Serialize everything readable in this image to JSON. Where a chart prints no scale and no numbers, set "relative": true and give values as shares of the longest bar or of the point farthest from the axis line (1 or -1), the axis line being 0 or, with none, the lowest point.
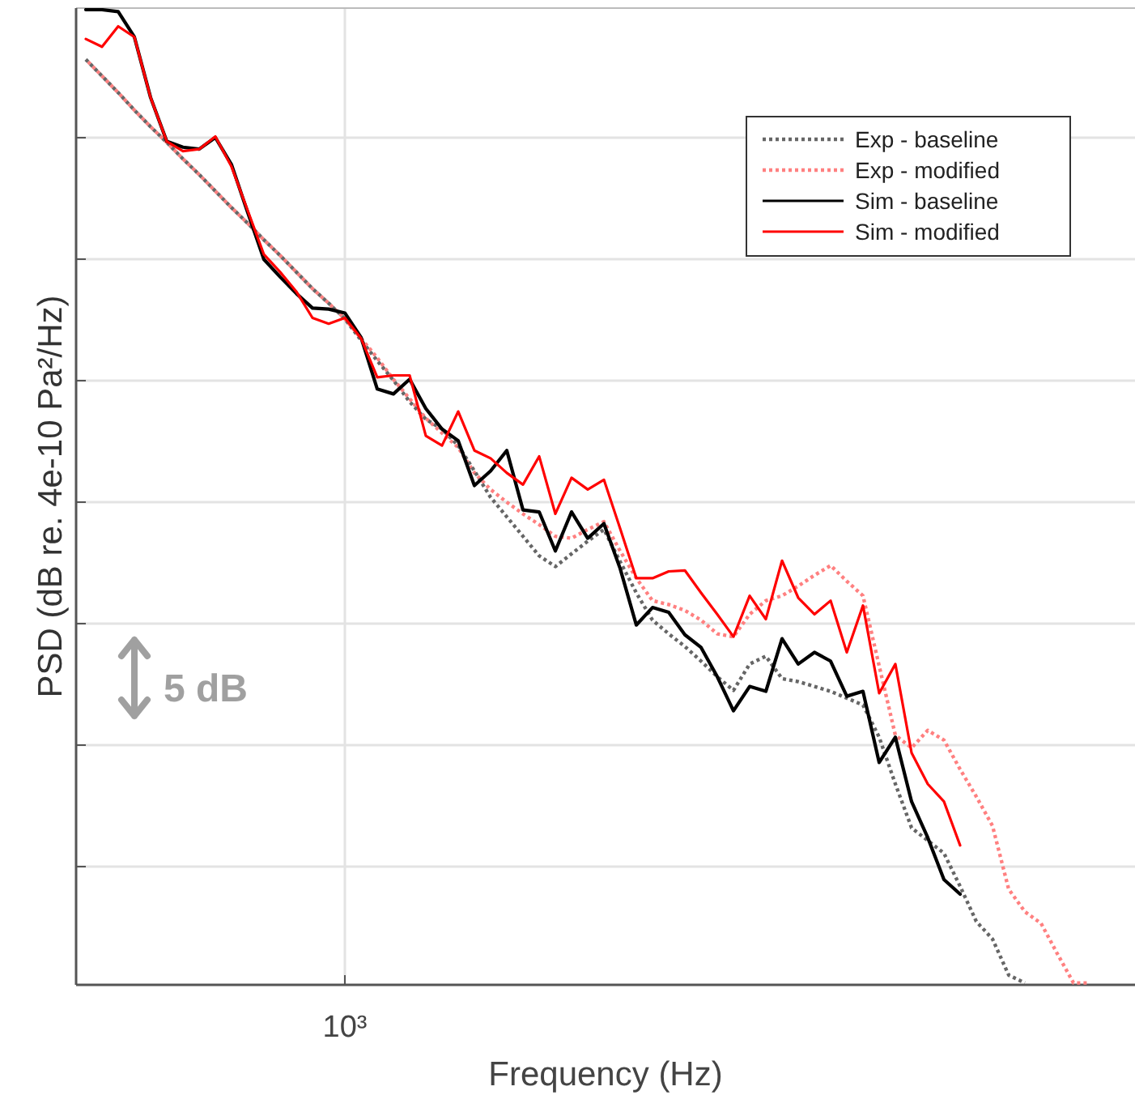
{
  "chart_data": {
    "type": "line",
    "relative": true,
    "xlabel": "Frequency  (Hz)",
    "ylabel": "PSD  (dB re. 4e-10 Pa²/Hz)",
    "annotations": [
      "5 dB",
      {
        "text": "10³"
      }
    ],
    "grid": true,
    "legend": "top right",
    "marker": "none",
    "categories": [
      null,
      null,
      null,
      null,
      null,
      null,
      null,
      null,
      null,
      null,
      null,
      null,
      null,
      null,
      null,
      null,
      null,
      null,
      null,
      null,
      null,
      null,
      null,
      null,
      null,
      null,
      null,
      null,
      null,
      null,
      null,
      null,
      null,
      null,
      null,
      null,
      null,
      null,
      null,
      null,
      null,
      null,
      null,
      null,
      null,
      null,
      null,
      null,
      null,
      null,
      null,
      null,
      null,
      null,
      null,
      null,
      null,
      null,
      null,
      null,
      null,
      null,
      null
    ],
    "series": [
      {
        "name": "Exp - baseline",
        "color": "#666666",
        "line_style": "dotted",
        "values": [
          0.949,
          0.932,
          0.915,
          0.897,
          0.88,
          0.864,
          0.847,
          0.831,
          0.814,
          0.797,
          0.781,
          0.764,
          0.748,
          0.731,
          0.714,
          0.699,
          0.683,
          0.661,
          0.64,
          0.62,
          0.598,
          0.58,
          0.57,
          0.553,
          0.527,
          0.5,
          0.48,
          0.46,
          0.44,
          0.429,
          0.442,
          0.455,
          0.467,
          0.434,
          0.402,
          0.374,
          0.36,
          0.347,
          0.332,
          0.316,
          0.302,
          0.329,
          0.337,
          0.314,
          0.311,
          0.306,
          0.301,
          0.294,
          0.287,
          0.254,
          0.206,
          0.161,
          0.148,
          0.135,
          0.101,
          0.065,
          0.047,
          0.01,
          0.002,
          null,
          null,
          null,
          null
        ]
      },
      {
        "name": "Exp - modified",
        "color": "#ff8080",
        "line_style": "dotted",
        "values": [
          0.949,
          0.932,
          0.915,
          0.897,
          0.88,
          0.864,
          0.847,
          0.831,
          0.814,
          0.797,
          0.781,
          0.764,
          0.748,
          0.731,
          0.714,
          0.699,
          0.683,
          0.663,
          0.643,
          0.621,
          0.601,
          0.581,
          0.566,
          0.551,
          0.525,
          0.508,
          0.495,
          0.483,
          0.472,
          0.46,
          0.458,
          0.467,
          0.475,
          0.445,
          0.417,
          0.394,
          0.39,
          0.384,
          0.374,
          0.36,
          0.357,
          0.38,
          0.394,
          0.399,
          0.409,
          0.42,
          0.43,
          0.414,
          0.399,
          0.327,
          0.256,
          0.243,
          0.261,
          0.251,
          0.221,
          0.193,
          0.163,
          0.098,
          0.075,
          0.063,
          0.032,
          0.002,
          0.002
        ]
      },
      {
        "name": "Sim - baseline",
        "color": "#000000",
        "line_style": "solid",
        "values": [
          1,
          1,
          0.998,
          0.972,
          0.91,
          0.865,
          0.859,
          0.857,
          0.869,
          0.841,
          0.792,
          0.744,
          0.726,
          0.709,
          0.694,
          0.693,
          0.689,
          0.664,
          0.611,
          0.606,
          0.621,
          0.591,
          0.57,
          0.558,
          0.512,
          0.527,
          0.548,
          0.487,
          0.485,
          0.445,
          0.485,
          0.458,
          0.473,
          0.427,
          0.369,
          0.387,
          0.382,
          0.359,
          0.346,
          0.316,
          0.281,
          0.306,
          0.301,
          0.355,
          0.329,
          0.341,
          0.332,
          0.296,
          0.301,
          0.228,
          0.254,
          0.188,
          0.151,
          0.108,
          0.093,
          null,
          null,
          null,
          null,
          null,
          null,
          null,
          null
        ]
      },
      {
        "name": "Sim - modified",
        "color": "#ff0000",
        "line_style": "solid",
        "values": [
          0.97,
          0.962,
          0.983,
          0.972,
          0.91,
          0.865,
          0.855,
          0.857,
          0.87,
          0.839,
          0.794,
          0.749,
          0.731,
          0.711,
          0.684,
          0.678,
          0.684,
          0.663,
          0.623,
          0.625,
          0.625,
          0.563,
          0.553,
          0.588,
          0.548,
          0.54,
          0.525,
          0.513,
          0.542,
          0.483,
          0.52,
          0.508,
          0.518,
          0.468,
          0.417,
          0.417,
          0.424,
          0.425,
          0.402,
          0.38,
          0.357,
          0.399,
          0.375,
          0.435,
          0.397,
          0.38,
          0.394,
          0.341,
          0.389,
          0.299,
          0.329,
          0.238,
          0.206,
          0.188,
          0.143,
          null,
          null,
          null,
          null,
          null,
          null,
          null,
          null
        ]
      }
    ]
  }
}
